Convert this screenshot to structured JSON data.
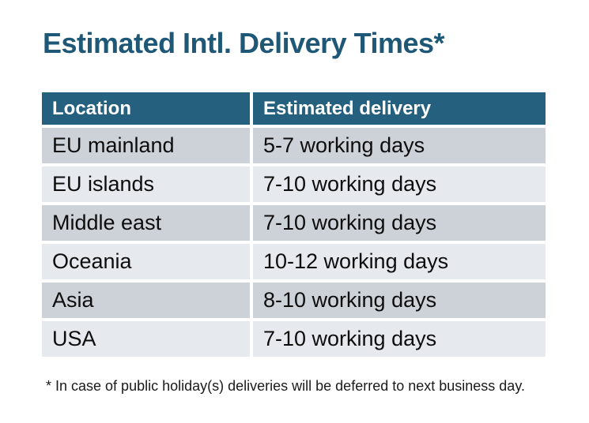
{
  "page": {
    "title": "Estimated Intl. Delivery Times*",
    "footnote": "* In case of public holiday(s) deliveries will be deferred to next business day."
  },
  "table": {
    "headers": [
      "Location",
      "Estimated delivery"
    ],
    "rows": [
      {
        "location": "EU mainland",
        "delivery": "5-7 working days"
      },
      {
        "location": "EU islands",
        "delivery": "7-10 working days"
      },
      {
        "location": "Middle east",
        "delivery": "7-10 working days"
      },
      {
        "location": "Oceania",
        "delivery": "10-12 working days"
      },
      {
        "location": "Asia",
        "delivery": "8-10 working days"
      },
      {
        "location": "USA",
        "delivery": "7-10 working days"
      }
    ]
  },
  "colors": {
    "title_text": "#1F5876",
    "header_bg": "#25617F",
    "header_text": "#FFFFFF",
    "row_dark": "#CDD1D8",
    "row_light": "#E6E9ED",
    "body_text": "#0D0D0D",
    "background": "#FFFFFF"
  }
}
